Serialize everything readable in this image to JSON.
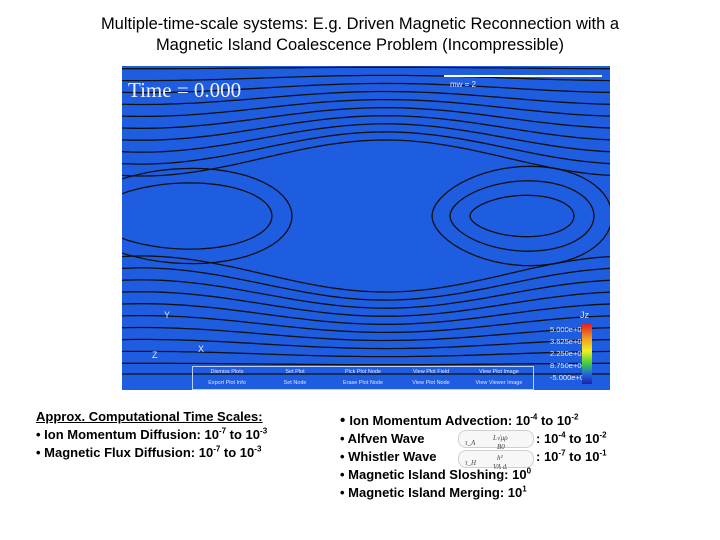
{
  "title": {
    "line1": "Multiple-time-scale systems: E.g. Driven Magnetic Reconnection with a",
    "line2": "Magnetic Island Coalescence Problem (Incompressible)"
  },
  "viz": {
    "time_label": "Time = 0.000",
    "scale_label": "mw = 2",
    "legend_var": "Jz",
    "legend_values": [
      "5.000e+01",
      "3.625e+01",
      "2.250e+01",
      "8.750e+00",
      "-5.000e+00"
    ],
    "axis": {
      "y": "Y",
      "x": "X",
      "z": "Z"
    },
    "menu_items": [
      "Dismiss Plots",
      "Set Plot",
      "Pick Plot Node",
      "View Plot Field",
      "View Plot Image",
      "Export Plot Info",
      "Set Node",
      "Erase Plot Node",
      "View Plot Node",
      "View Viewer Image"
    ],
    "background_color": "#1f5de0",
    "line_color": "#101010"
  },
  "left_block": {
    "heading": "Approx. Computational Time Scales:",
    "items": [
      {
        "prefix": "• Ion Momentum Diffusion: 10",
        "exp1": "-7",
        "mid": " to 10",
        "exp2": "-3"
      },
      {
        "prefix": "• Magnetic Flux Diffusion:  10",
        "exp1": "-7",
        "mid": " to 10",
        "exp2": "-3"
      }
    ]
  },
  "right_block": {
    "advection": {
      "prefix": "Ion Momentum Advection: 10",
      "exp1": "-4",
      "mid": " to 10",
      "exp2": "-2"
    },
    "alfven": {
      "label": "• Alfven Wave",
      "suffix": ": 10",
      "exp1": "-4",
      "mid": " to 10",
      "exp2": "-2"
    },
    "whistler": {
      "label": "• Whistler Wave",
      "suffix": ": 10",
      "exp1": "-7",
      "mid": " to 10",
      "exp2": "-1"
    },
    "sloshing": {
      "prefix": "• Magnetic Island Sloshing: 10",
      "exp": "0"
    },
    "merging": {
      "prefix": "• Magnetic Island Merging: 10",
      "exp": "1"
    },
    "formula_alfven": {
      "lhs": "τ_A",
      "num": "L√μρ",
      "den": "B0"
    },
    "formula_whistler": {
      "lhs": "τ_H",
      "num": "h²",
      "den": "VA dᵢ"
    }
  }
}
